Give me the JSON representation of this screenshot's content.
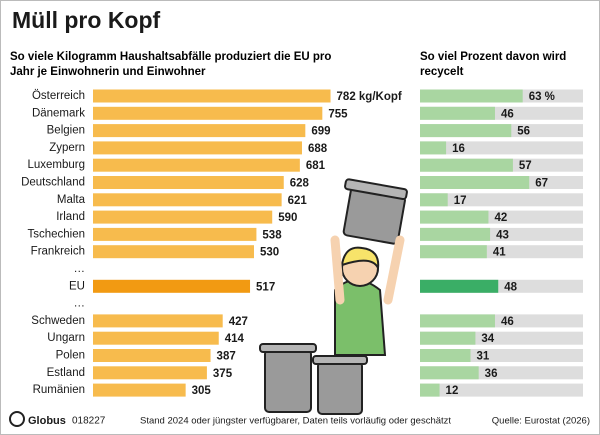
{
  "chart_data": [
    {
      "type": "bar",
      "orientation": "horizontal",
      "title": "Müll pro Kopf",
      "subtitle": "So viele Kilogramm Haushaltsabfälle produziert die EU pro Jahr je Einwohnerin und Einwohner",
      "categories": [
        "Österreich",
        "Dänemark",
        "Belgien",
        "Zypern",
        "Luxemburg",
        "Deutschland",
        "Malta",
        "Irland",
        "Tschechien",
        "Frankreich",
        "…",
        "EU",
        "…",
        "Schweden",
        "Ungarn",
        "Polen",
        "Estland",
        "Rumänien"
      ],
      "values": [
        782,
        755,
        699,
        688,
        681,
        628,
        621,
        590,
        538,
        530,
        null,
        517,
        null,
        427,
        414,
        387,
        375,
        305
      ],
      "value_labels": [
        "782 kg/Kopf",
        "755",
        "699",
        "688",
        "681",
        "628",
        "621",
        "590",
        "538",
        "530",
        null,
        "517",
        null,
        "427",
        "414",
        "387",
        "375",
        "305"
      ],
      "colors": [
        "#f7bb4d",
        "#f7bb4d",
        "#f7bb4d",
        "#f7bb4d",
        "#f7bb4d",
        "#f7bb4d",
        "#f7bb4d",
        "#f7bb4d",
        "#f7bb4d",
        "#f7bb4d",
        null,
        "#f29a12",
        null,
        "#f7bb4d",
        "#f7bb4d",
        "#f7bb4d",
        "#f7bb4d",
        "#f7bb4d"
      ],
      "xlim": [
        0,
        800
      ]
    },
    {
      "type": "bar",
      "orientation": "horizontal",
      "subtitle": "So viel Prozent davon wird recycelt",
      "values": [
        63,
        46,
        56,
        16,
        57,
        67,
        17,
        42,
        43,
        41,
        null,
        48,
        null,
        46,
        34,
        31,
        36,
        12
      ],
      "value_labels": [
        "63 %",
        "46",
        "56",
        "16",
        "57",
        "67",
        "17",
        "42",
        "43",
        "41",
        null,
        "48",
        null,
        "46",
        "34",
        "31",
        "36",
        "12"
      ],
      "colors": [
        "#a9d6a1",
        "#a9d6a1",
        "#a9d6a1",
        "#a9d6a1",
        "#a9d6a1",
        "#a9d6a1",
        "#a9d6a1",
        "#a9d6a1",
        "#a9d6a1",
        "#a9d6a1",
        null,
        "#3aae66",
        null,
        "#a9d6a1",
        "#a9d6a1",
        "#a9d6a1",
        "#a9d6a1",
        "#a9d6a1"
      ],
      "track_color": "#dddddd",
      "xlim": [
        0,
        100
      ]
    }
  ],
  "footer": {
    "brand": "Globus",
    "id": "018227",
    "note": "Stand 2024 oder jüngster verfügbarer, Daten teils vorläufig oder geschätzt",
    "source": "Quelle: Eurostat (2026)"
  }
}
